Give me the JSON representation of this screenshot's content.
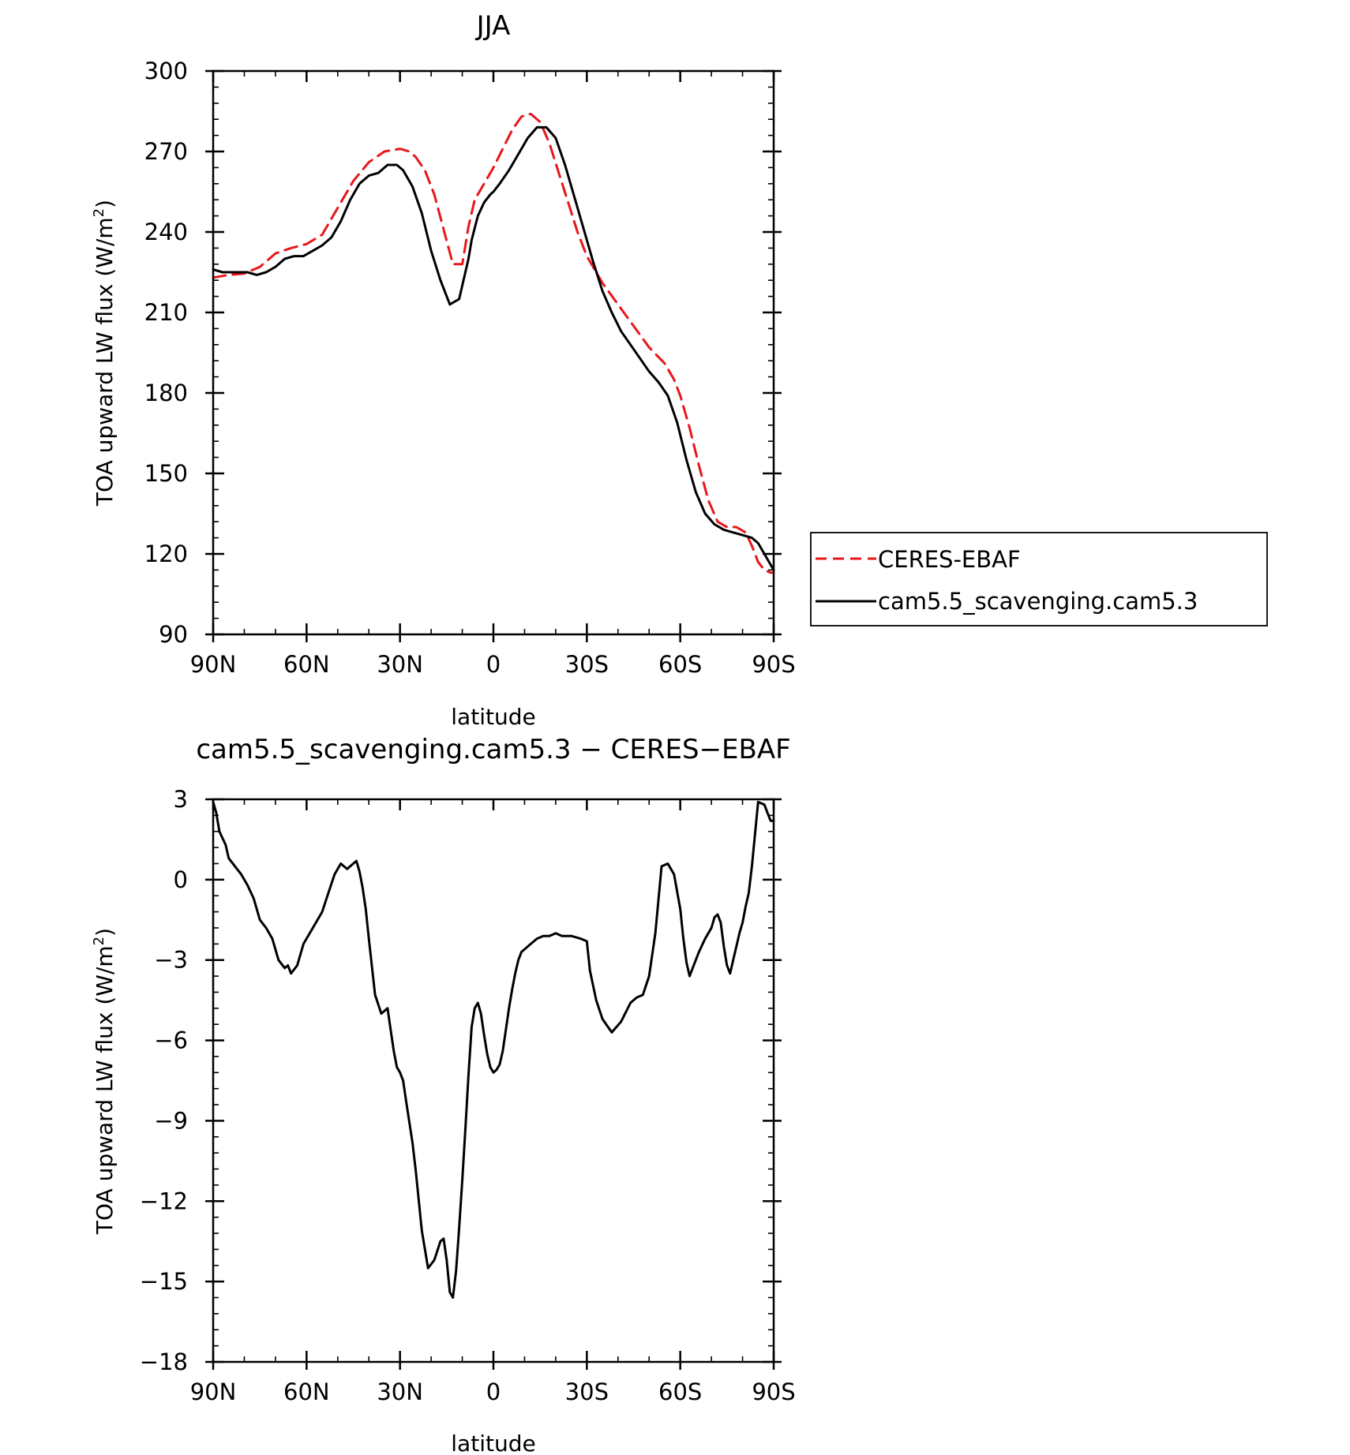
{
  "chart_data": [
    {
      "type": "line",
      "title": "JJA",
      "xlabel": "latitude",
      "ylabel": "TOA upward LW flux (W/m²)",
      "ylabel_main": "TOA upward LW flux (W/m",
      "ylabel_sup": "2",
      "ylabel_close": ")",
      "xlim": [
        90,
        -90
      ],
      "ylim": [
        90,
        300
      ],
      "x_ticks": [
        90,
        60,
        30,
        0,
        -30,
        -60,
        -90
      ],
      "x_tick_labels": [
        "90N",
        "60N",
        "30N",
        "0",
        "30S",
        "60S",
        "90S"
      ],
      "y_ticks": [
        90,
        120,
        150,
        180,
        210,
        240,
        270,
        300
      ],
      "y_tick_labels": [
        "90",
        "120",
        "150",
        "180",
        "210",
        "240",
        "270",
        "300"
      ],
      "grid": false,
      "legend": "outside-right",
      "series": [
        {
          "name": "CERES-EBAF",
          "color": "#e8161b",
          "dash": "dashed",
          "x": [
            90,
            85,
            80,
            75,
            70,
            65,
            60,
            55,
            50,
            45,
            40,
            35,
            30,
            27,
            25,
            22,
            19,
            16,
            13,
            10,
            8,
            6,
            4,
            2,
            0,
            -3,
            -6,
            -9,
            -12,
            -15,
            -18,
            -21,
            -24,
            -27,
            -30,
            -35,
            -40,
            -45,
            -50,
            -55,
            -58,
            -60,
            -63,
            -66,
            -69,
            -72,
            -75,
            -78,
            -81,
            -83,
            -85,
            -87,
            -89,
            -90
          ],
          "y": [
            223,
            224,
            224.5,
            227,
            232,
            234,
            235.5,
            239,
            249,
            259,
            266,
            270,
            271,
            270,
            268,
            263,
            254,
            241,
            228,
            228,
            242,
            252,
            256,
            260,
            264,
            271,
            278,
            283,
            284,
            281,
            273,
            262,
            251,
            240,
            231,
            221,
            213,
            205,
            197,
            191,
            185,
            179,
            167,
            153,
            140,
            132,
            130,
            130,
            128,
            123,
            117,
            114,
            113,
            113
          ]
        },
        {
          "name": "cam5.5_scavenging.cam5.3",
          "color": "#000000",
          "dash": "solid",
          "x": [
            90,
            87,
            85,
            82,
            79,
            76,
            73,
            70,
            67,
            64,
            61,
            58,
            55,
            52,
            49,
            46,
            43,
            40,
            37,
            34,
            31,
            29,
            26,
            23,
            20,
            17,
            14,
            11,
            8,
            7,
            5,
            3,
            1,
            0,
            -2,
            -5,
            -8,
            -11,
            -14,
            -17,
            -20,
            -23,
            -26,
            -29,
            -32,
            -35,
            -38,
            -41,
            -44,
            -47,
            -50,
            -53,
            -56,
            -59,
            -62,
            -65,
            -68,
            -71,
            -74,
            -77,
            -80,
            -83,
            -85,
            -87,
            -89,
            -90
          ],
          "y": [
            226,
            225,
            225,
            225,
            225,
            224,
            225,
            227,
            230,
            231,
            231,
            233,
            235,
            238,
            244,
            252,
            258,
            261,
            262,
            265,
            265,
            263,
            257,
            247,
            233,
            222,
            213,
            215,
            230,
            237,
            246,
            251,
            254,
            255,
            258,
            263,
            269,
            275,
            279,
            279,
            275,
            265,
            253,
            241,
            229,
            218,
            210,
            203,
            198,
            193,
            188,
            184,
            179,
            169,
            155,
            143,
            135,
            131,
            129,
            128,
            127,
            126,
            124,
            120,
            116,
            114
          ]
        }
      ]
    },
    {
      "type": "line",
      "title": "cam5.5_scavenging.cam5.3 − CERES−EBAF",
      "xlabel": "latitude",
      "ylabel": "TOA upward LW flux (W/m²)",
      "ylabel_main": "TOA upward LW flux (W/m",
      "ylabel_sup": "2",
      "ylabel_close": ")",
      "xlim": [
        90,
        -90
      ],
      "ylim": [
        -18,
        3
      ],
      "x_ticks": [
        90,
        60,
        30,
        0,
        -30,
        -60,
        -90
      ],
      "x_tick_labels": [
        "90N",
        "60N",
        "30N",
        "0",
        "30S",
        "60S",
        "90S"
      ],
      "y_ticks": [
        -18,
        -15,
        -12,
        -9,
        -6,
        -3,
        0,
        3
      ],
      "y_tick_labels": [
        "−18",
        "−15",
        "−12",
        "−9",
        "−6",
        "−3",
        "0",
        "3"
      ],
      "grid": false,
      "series": [
        {
          "name": "",
          "color": "#000000",
          "dash": "solid",
          "x": [
            90,
            89,
            88,
            86,
            85,
            83,
            81,
            79,
            77,
            75,
            73,
            71,
            69,
            67,
            66,
            65,
            63,
            61,
            59,
            57,
            55,
            53,
            51,
            49,
            47,
            46,
            45,
            44,
            43,
            42,
            41,
            40,
            38,
            36,
            34,
            33,
            32,
            31,
            30,
            29,
            28,
            26,
            25,
            23,
            21,
            19,
            17,
            16,
            15,
            14,
            13,
            12,
            11,
            10,
            9,
            8,
            7,
            6,
            5,
            4,
            3,
            2,
            1,
            0,
            -1,
            -2,
            -3,
            -4,
            -5,
            -6,
            -7,
            -8,
            -9,
            -10,
            -12,
            -14,
            -16,
            -18,
            -20,
            -22,
            -25,
            -28,
            -30,
            -31,
            -33,
            -35,
            -38,
            -41,
            -44,
            -46,
            -48,
            -50,
            -52,
            -54,
            -56,
            -58,
            -60,
            -61,
            -62,
            -63,
            -64,
            -66,
            -68,
            -70,
            -71,
            -72,
            -73,
            -74,
            -75,
            -76,
            -77,
            -78,
            -79,
            -80,
            -81,
            -82,
            -83,
            -85,
            -87,
            -88,
            -89,
            -90
          ],
          "y": [
            2.9,
            2.5,
            1.8,
            1.3,
            0.8,
            0.5,
            0.2,
            -0.2,
            -0.7,
            -1.5,
            -1.8,
            -2.2,
            -3.0,
            -3.3,
            -3.2,
            -3.5,
            -3.2,
            -2.4,
            -2.0,
            -1.6,
            -1.2,
            -0.5,
            0.2,
            0.6,
            0.4,
            0.5,
            0.6,
            0.7,
            0.3,
            -0.3,
            -1.1,
            -2.2,
            -4.3,
            -5.0,
            -4.8,
            -5.6,
            -6.4,
            -7.0,
            -7.2,
            -7.5,
            -8.3,
            -9.8,
            -10.8,
            -13.1,
            -14.5,
            -14.2,
            -13.5,
            -13.4,
            -14.2,
            -15.4,
            -15.6,
            -14.6,
            -13.0,
            -11.2,
            -9.3,
            -7.3,
            -5.5,
            -4.8,
            -4.6,
            -5.0,
            -5.8,
            -6.5,
            -7.0,
            -7.2,
            -7.1,
            -6.9,
            -6.4,
            -5.6,
            -4.8,
            -4.1,
            -3.5,
            -3.0,
            -2.7,
            -2.6,
            -2.4,
            -2.2,
            -2.1,
            -2.1,
            -2.0,
            -2.1,
            -2.1,
            -2.2,
            -2.3,
            -3.4,
            -4.5,
            -5.2,
            -5.7,
            -5.3,
            -4.6,
            -4.4,
            -4.3,
            -3.6,
            -2.0,
            0.5,
            0.6,
            0.2,
            -1.1,
            -2.2,
            -3.1,
            -3.6,
            -3.3,
            -2.7,
            -2.2,
            -1.8,
            -1.4,
            -1.3,
            -1.6,
            -2.5,
            -3.2,
            -3.5,
            -3.0,
            -2.5,
            -2.0,
            -1.6,
            -1.0,
            -0.5,
            0.5,
            2.9,
            2.8,
            2.5,
            2.2,
            2.2
          ]
        }
      ]
    }
  ]
}
